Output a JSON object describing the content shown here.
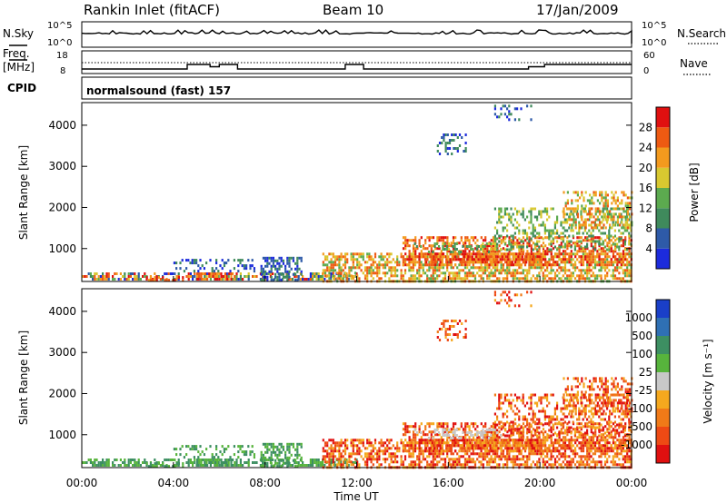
{
  "header": {
    "station": "Rankin Inlet (fitACF)",
    "beam": "Beam 10",
    "date": "17/Jan/2009"
  },
  "top_panels": {
    "nsky_label": "N.Sky",
    "nsky_ticks": [
      "10^5",
      "10^0"
    ],
    "nsearch_label": "N.Search",
    "nsearch_ticks": [
      "10^5",
      "10^0"
    ],
    "freq_label_1": "Freq.",
    "freq_label_2": "[MHz]",
    "freq_ticks": [
      "18",
      "8"
    ],
    "nave_label": "Nave",
    "nave_ticks": [
      "60",
      "0"
    ],
    "cpid_label": "CPID",
    "cpid_value": "normalsound (fast) 157"
  },
  "colors": {
    "power_scale": [
      "#1c2bdc",
      "#2e5aa8",
      "#3f8a5c",
      "#5caa4f",
      "#d8c830",
      "#f39a1e",
      "#ee5a12",
      "#e01010"
    ],
    "velocity_scale": [
      "#1a3fc8",
      "#2f70b4",
      "#3d8f62",
      "#57b43c",
      "#c8c8c8",
      "#f5a81e",
      "#f07a18",
      "#ee4a14",
      "#e01010"
    ]
  },
  "chart_data": [
    {
      "type": "heatmap",
      "title": "",
      "xlabel": "Time UT",
      "ylabel": "Slant Range [km]",
      "x_ticks": [
        "00:00",
        "04:00",
        "08:00",
        "12:00",
        "16:00",
        "20:00",
        "00:00"
      ],
      "x_hours": [
        0,
        4,
        8,
        12,
        16,
        20,
        24
      ],
      "y_ticks": [
        1000,
        2000,
        3000,
        4000
      ],
      "ylim": [
        200,
        4550
      ],
      "colorbar_label": "Power [dB]",
      "colorbar_ticks": [
        "4",
        "8",
        "12",
        "16",
        "20",
        "24",
        "28"
      ],
      "colorbar_range": [
        0,
        32
      ]
    },
    {
      "type": "heatmap",
      "title": "",
      "xlabel": "Time UT",
      "ylabel": "Slant Range [km]",
      "x_ticks": [
        "00:00",
        "04:00",
        "08:00",
        "12:00",
        "16:00",
        "20:00",
        "00:00"
      ],
      "x_hours": [
        0,
        4,
        8,
        12,
        16,
        20,
        24
      ],
      "y_ticks": [
        1000,
        2000,
        3000,
        4000
      ],
      "ylim": [
        200,
        4550
      ],
      "colorbar_label": "Velocity [m s⁻¹]",
      "colorbar_ticks": [
        "1000",
        "500",
        "100",
        "25",
        "-25",
        "-100",
        "-500",
        "-1000"
      ]
    }
  ]
}
